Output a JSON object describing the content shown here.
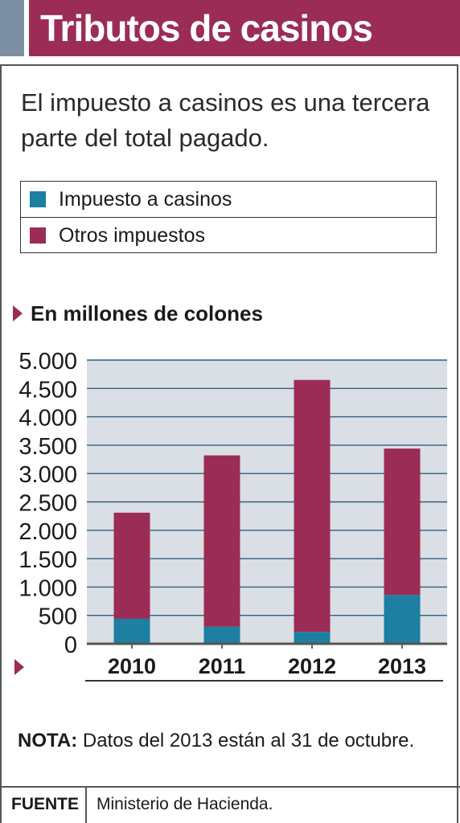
{
  "header": {
    "title": "Tributos de casinos"
  },
  "subtitle": "El impuesto a casinos es una tercera parte del total pagado.",
  "legend": [
    {
      "label": "Impuesto a casinos",
      "color": "#1d7fa1"
    },
    {
      "label": "Otros impuestos",
      "color": "#9b2c55"
    }
  ],
  "unit_label": "En millones de colones",
  "note": {
    "label": "NOTA:",
    "text": "Datos del 2013 están al 31 de octubre."
  },
  "footer": {
    "label": "FUENTE",
    "source": "Ministerio de Hacienda."
  },
  "chart_data": {
    "type": "bar",
    "stacked": true,
    "categories": [
      "2010",
      "2011",
      "2012",
      "2013"
    ],
    "series": [
      {
        "name": "Impuesto a casinos",
        "color": "#1d7fa1",
        "values": [
          440,
          300,
          210,
          860
        ]
      },
      {
        "name": "Otros impuestos",
        "color": "#9b2c55",
        "values": [
          1870,
          3020,
          4440,
          2580
        ]
      }
    ],
    "ylim": [
      0,
      5000
    ],
    "yticks": [
      0,
      500,
      1000,
      1500,
      2000,
      2500,
      3000,
      3500,
      4000,
      4500,
      5000
    ],
    "ytick_labels": [
      "0",
      "500",
      "1.000",
      "1.500",
      "2.000",
      "2.500",
      "3.000",
      "3.500",
      "4.000",
      "4.500",
      "5.000"
    ],
    "grid": true,
    "plot_background": "#d9dfe5"
  }
}
